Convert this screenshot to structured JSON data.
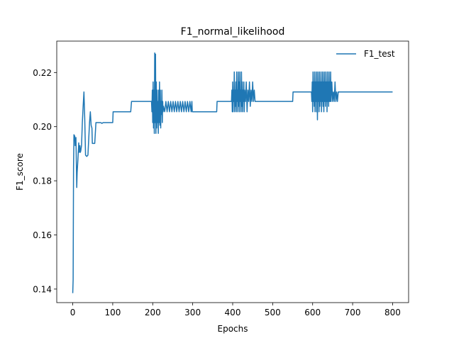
{
  "chart_data": {
    "type": "line",
    "title": "F1_normal_likelihood",
    "xlabel": "Epochs",
    "ylabel": "F1_score",
    "xlim": [
      -40,
      840
    ],
    "ylim": [
      0.135,
      0.2316
    ],
    "xticks": [
      0,
      100,
      200,
      300,
      400,
      500,
      600,
      700,
      800
    ],
    "xtick_labels": [
      "0",
      "100",
      "200",
      "300",
      "400",
      "500",
      "600",
      "700",
      "800"
    ],
    "yticks": [
      0.14,
      0.16,
      0.18,
      0.2,
      0.22
    ],
    "ytick_labels": [
      "0.14",
      "0.16",
      "0.18",
      "0.20",
      "0.22"
    ],
    "grid": false,
    "legend": {
      "position": "top-right",
      "entries": [
        "F1_test"
      ]
    },
    "colors": {
      "series": "#1f77b4",
      "axes": "#000000",
      "background": "#ffffff"
    },
    "series": [
      {
        "name": "F1_test",
        "color": "#1f77b4",
        "points": [
          [
            0,
            0.1385
          ],
          [
            1,
            0.1435
          ],
          [
            2,
            0.185
          ],
          [
            3,
            0.197
          ],
          [
            5,
            0.1965
          ],
          [
            6,
            0.193
          ],
          [
            8,
            0.196
          ],
          [
            10,
            0.1775
          ],
          [
            11,
            0.183
          ],
          [
            13,
            0.188
          ],
          [
            15,
            0.194
          ],
          [
            16,
            0.1905
          ],
          [
            18,
            0.193
          ],
          [
            19,
            0.1905
          ],
          [
            20,
            0.191
          ],
          [
            22,
            0.193
          ],
          [
            24,
            0.2015
          ],
          [
            26,
            0.2075
          ],
          [
            28,
            0.2128
          ],
          [
            30,
            0.203
          ],
          [
            32,
            0.1895
          ],
          [
            35,
            0.189
          ],
          [
            38,
            0.1895
          ],
          [
            40,
            0.1955
          ],
          [
            42,
            0.2015
          ],
          [
            44,
            0.2055
          ],
          [
            46,
            0.2005
          ],
          [
            48,
            0.1995
          ],
          [
            49,
            0.1938
          ],
          [
            55,
            0.1938
          ],
          [
            58,
            0.2015
          ],
          [
            70,
            0.2015
          ],
          [
            73,
            0.2012
          ],
          [
            76,
            0.2015
          ],
          [
            100,
            0.2015
          ],
          [
            101,
            0.2055
          ],
          [
            145,
            0.2055
          ],
          [
            147,
            0.2093
          ],
          [
            197,
            0.2093
          ],
          [
            198,
            0.2055
          ],
          [
            199,
            0.2135
          ],
          [
            200,
            0.2015
          ],
          [
            201,
            0.2165
          ],
          [
            202,
            0.1995
          ],
          [
            203,
            0.2135
          ],
          [
            204,
            0.1975
          ],
          [
            205,
            0.2272
          ],
          [
            206,
            0.2015
          ],
          [
            207,
            0.2268
          ],
          [
            208,
            0.1975
          ],
          [
            209,
            0.2165
          ],
          [
            210,
            0.1995
          ],
          [
            211,
            0.2135
          ],
          [
            212,
            0.2015
          ],
          [
            213,
            0.2093
          ],
          [
            214,
            0.1975
          ],
          [
            215,
            0.2135
          ],
          [
            216,
            0.2015
          ],
          [
            217,
            0.2165
          ],
          [
            218,
            0.2005
          ],
          [
            219,
            0.2135
          ],
          [
            220,
            0.1995
          ],
          [
            221,
            0.2093
          ],
          [
            222,
            0.2045
          ],
          [
            223,
            0.2135
          ],
          [
            224,
            0.2015
          ],
          [
            225,
            0.2093
          ],
          [
            226,
            0.2055
          ],
          [
            227,
            0.2075
          ],
          [
            230,
            0.2055
          ],
          [
            233,
            0.2093
          ],
          [
            236,
            0.2055
          ],
          [
            239,
            0.2093
          ],
          [
            242,
            0.2055
          ],
          [
            245,
            0.2093
          ],
          [
            248,
            0.2055
          ],
          [
            251,
            0.2093
          ],
          [
            254,
            0.2055
          ],
          [
            257,
            0.2093
          ],
          [
            260,
            0.2055
          ],
          [
            263,
            0.2093
          ],
          [
            266,
            0.2055
          ],
          [
            269,
            0.2093
          ],
          [
            272,
            0.2055
          ],
          [
            275,
            0.2093
          ],
          [
            278,
            0.2055
          ],
          [
            281,
            0.2093
          ],
          [
            284,
            0.2055
          ],
          [
            287,
            0.2093
          ],
          [
            290,
            0.2055
          ],
          [
            293,
            0.2093
          ],
          [
            296,
            0.2055
          ],
          [
            298,
            0.2093
          ],
          [
            299,
            0.2055
          ],
          [
            360,
            0.2055
          ],
          [
            361,
            0.2093
          ],
          [
            397,
            0.2093
          ],
          [
            398,
            0.2135
          ],
          [
            399,
            0.2055
          ],
          [
            400,
            0.2165
          ],
          [
            401,
            0.2055
          ],
          [
            402,
            0.2135
          ],
          [
            403,
            0.2093
          ],
          [
            404,
            0.2202
          ],
          [
            405,
            0.2055
          ],
          [
            406,
            0.2135
          ],
          [
            407,
            0.2075
          ],
          [
            408,
            0.2165
          ],
          [
            409,
            0.2055
          ],
          [
            410,
            0.2202
          ],
          [
            411,
            0.2093
          ],
          [
            412,
            0.2135
          ],
          [
            413,
            0.2055
          ],
          [
            414,
            0.2202
          ],
          [
            415,
            0.2075
          ],
          [
            416,
            0.2165
          ],
          [
            417,
            0.2055
          ],
          [
            418,
            0.2202
          ],
          [
            419,
            0.2093
          ],
          [
            420,
            0.2135
          ],
          [
            421,
            0.2055
          ],
          [
            422,
            0.2202
          ],
          [
            423,
            0.2075
          ],
          [
            424,
            0.2165
          ],
          [
            425,
            0.2055
          ],
          [
            426,
            0.2135
          ],
          [
            427,
            0.2093
          ],
          [
            428,
            0.2165
          ],
          [
            429,
            0.2055
          ],
          [
            430,
            0.2135
          ],
          [
            432,
            0.2093
          ],
          [
            434,
            0.2165
          ],
          [
            436,
            0.2055
          ],
          [
            438,
            0.2135
          ],
          [
            440,
            0.2093
          ],
          [
            442,
            0.2165
          ],
          [
            444,
            0.2075
          ],
          [
            446,
            0.2135
          ],
          [
            448,
            0.2093
          ],
          [
            450,
            0.2165
          ],
          [
            452,
            0.2093
          ],
          [
            454,
            0.2135
          ],
          [
            456,
            0.2093
          ],
          [
            550,
            0.2093
          ],
          [
            551,
            0.2128
          ],
          [
            597,
            0.2128
          ],
          [
            598,
            0.2093
          ],
          [
            599,
            0.2165
          ],
          [
            600,
            0.2055
          ],
          [
            601,
            0.2202
          ],
          [
            602,
            0.2093
          ],
          [
            603,
            0.2165
          ],
          [
            604,
            0.2075
          ],
          [
            605,
            0.2202
          ],
          [
            606,
            0.2055
          ],
          [
            607,
            0.2165
          ],
          [
            608,
            0.2093
          ],
          [
            609,
            0.2202
          ],
          [
            610,
            0.2055
          ],
          [
            611,
            0.2165
          ],
          [
            612,
            0.2025
          ],
          [
            613,
            0.2202
          ],
          [
            614,
            0.2093
          ],
          [
            615,
            0.2165
          ],
          [
            616,
            0.2055
          ],
          [
            617,
            0.2202
          ],
          [
            618,
            0.2075
          ],
          [
            619,
            0.2165
          ],
          [
            620,
            0.2093
          ],
          [
            621,
            0.2202
          ],
          [
            622,
            0.2055
          ],
          [
            623,
            0.2165
          ],
          [
            624,
            0.2093
          ],
          [
            625,
            0.2202
          ],
          [
            626,
            0.2075
          ],
          [
            627,
            0.2165
          ],
          [
            628,
            0.2055
          ],
          [
            629,
            0.2202
          ],
          [
            630,
            0.2093
          ],
          [
            631,
            0.2165
          ],
          [
            632,
            0.2075
          ],
          [
            633,
            0.2202
          ],
          [
            634,
            0.2093
          ],
          [
            635,
            0.2165
          ],
          [
            636,
            0.2055
          ],
          [
            637,
            0.2202
          ],
          [
            638,
            0.2093
          ],
          [
            639,
            0.2165
          ],
          [
            640,
            0.2075
          ],
          [
            641,
            0.2202
          ],
          [
            642,
            0.2093
          ],
          [
            643,
            0.2165
          ],
          [
            644,
            0.2093
          ],
          [
            645,
            0.2202
          ],
          [
            646,
            0.2093
          ],
          [
            648,
            0.2165
          ],
          [
            650,
            0.2093
          ],
          [
            652,
            0.2128
          ],
          [
            654,
            0.2093
          ],
          [
            656,
            0.2165
          ],
          [
            658,
            0.2093
          ],
          [
            660,
            0.2128
          ],
          [
            662,
            0.2093
          ],
          [
            664,
            0.2128
          ],
          [
            665,
            0.2128
          ],
          [
            800,
            0.2128
          ]
        ]
      }
    ]
  }
}
